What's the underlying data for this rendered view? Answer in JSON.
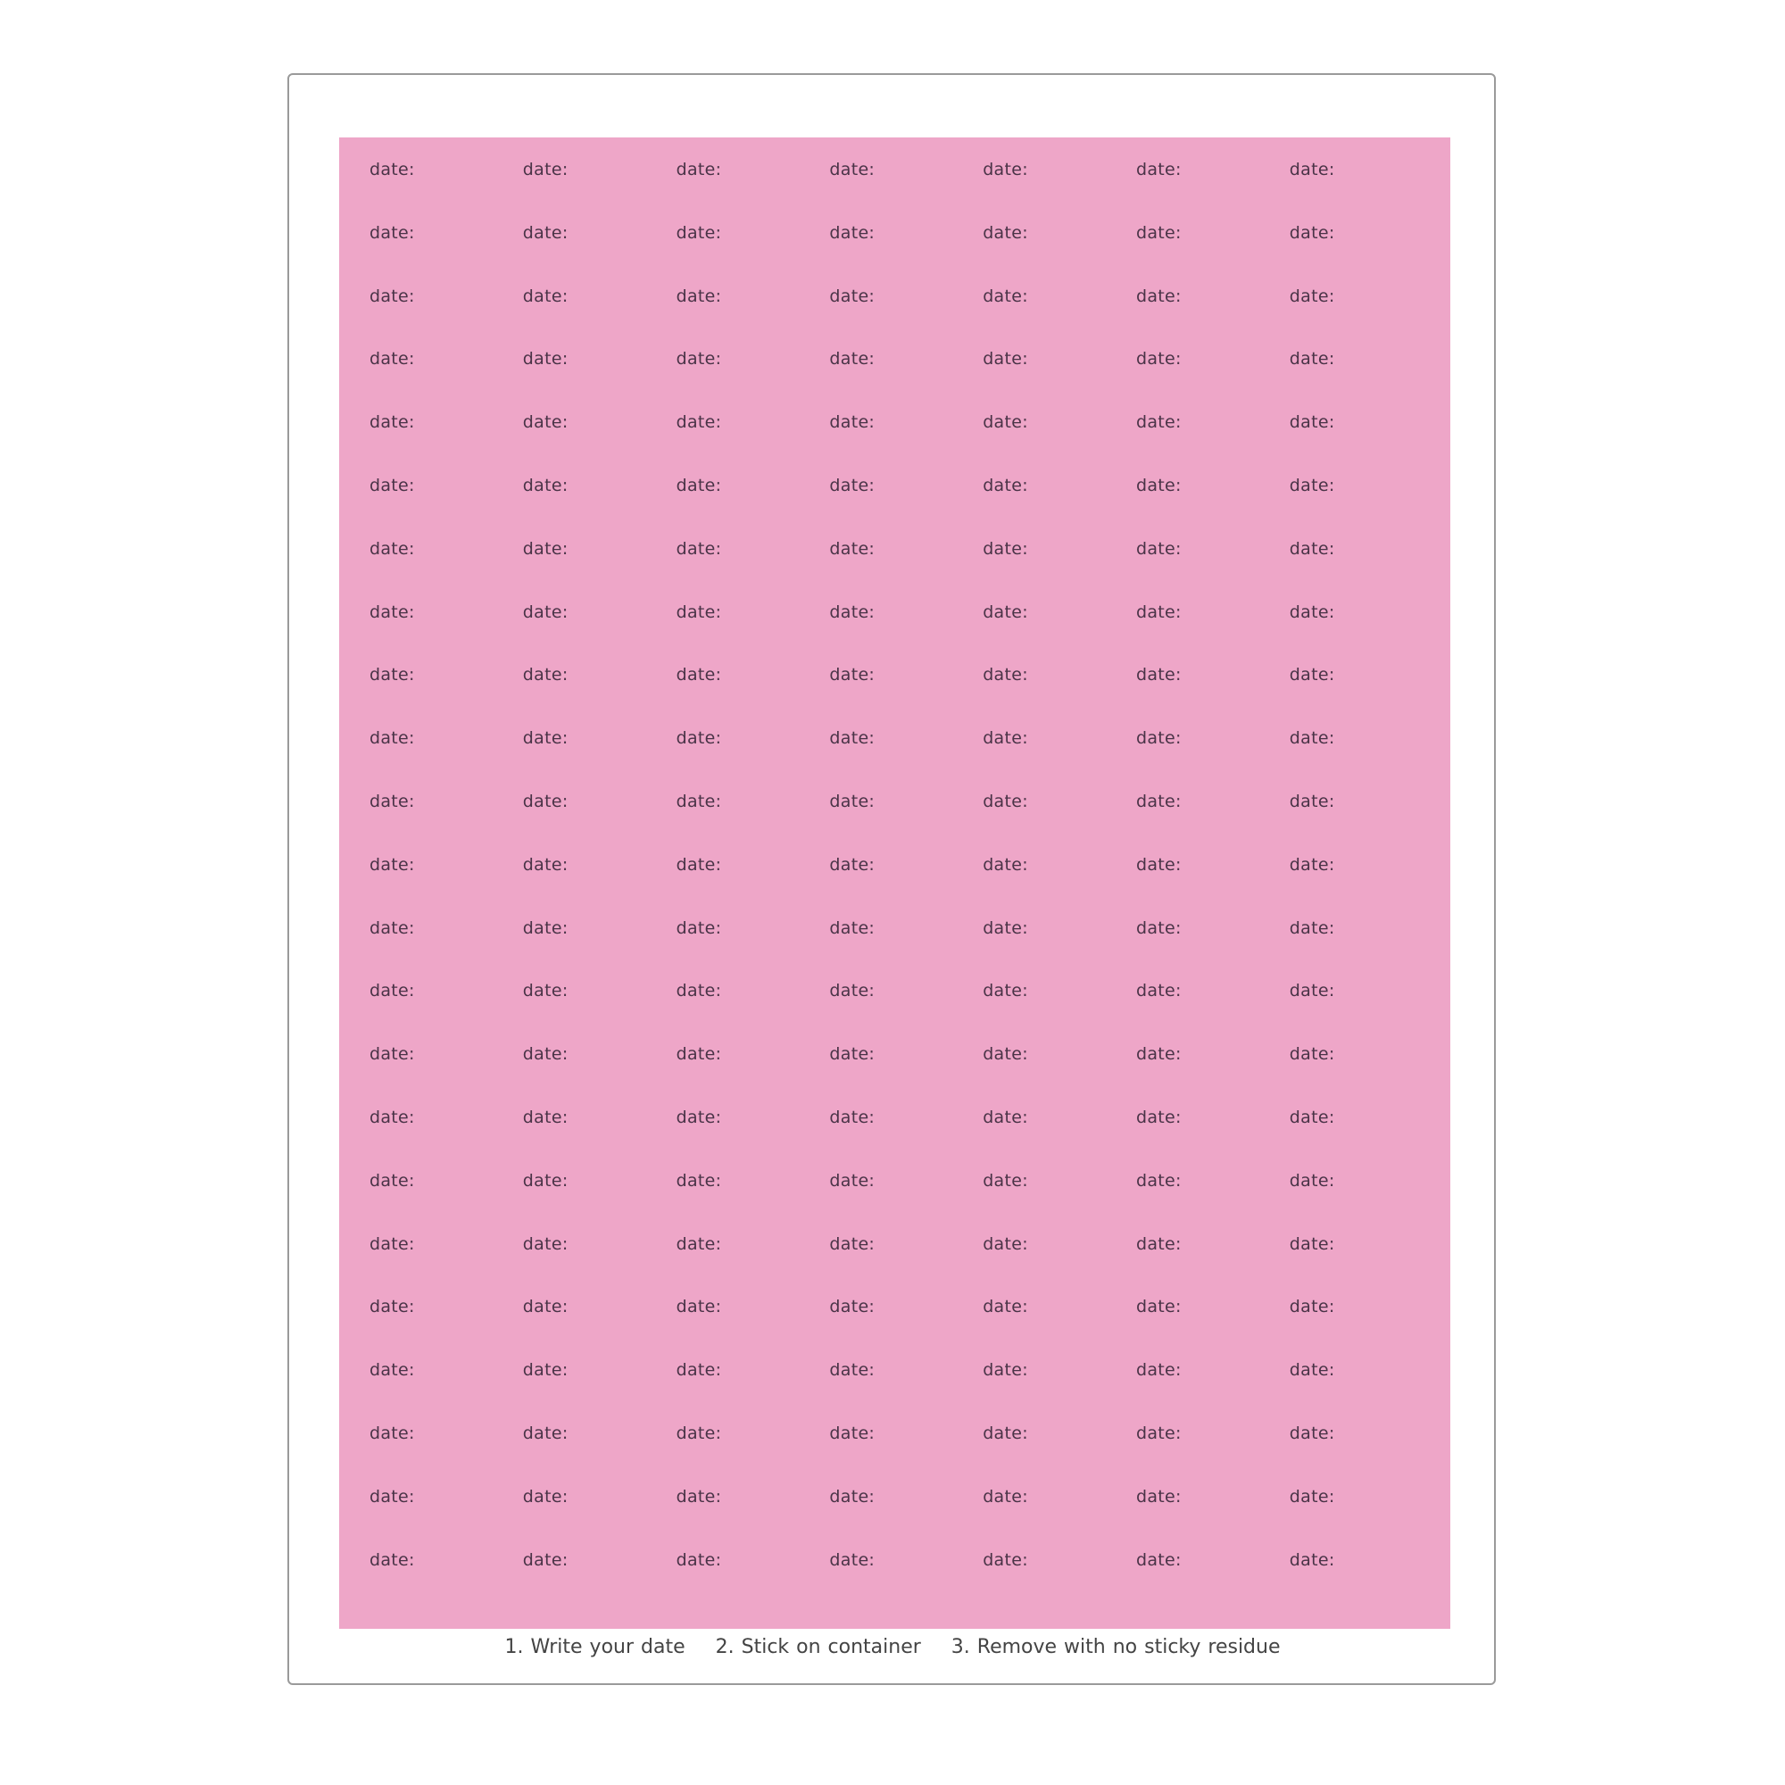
{
  "sheet": {
    "label_text": "date:",
    "rows": 23,
    "columns": 7,
    "colors": {
      "label_background": "#eea6c8",
      "label_text": "#4a3347",
      "border": "#9a9a9a"
    }
  },
  "instructions": [
    "1. Write your date",
    "2. Stick on container",
    "3. Remove with no sticky residue"
  ]
}
